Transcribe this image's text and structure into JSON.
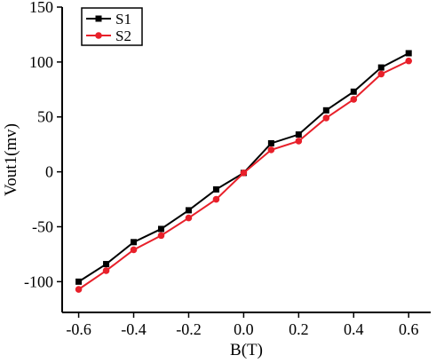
{
  "chart_data": {
    "type": "line",
    "xlabel": "B(T)",
    "ylabel": "Vout1(mv)",
    "xlim": [
      -0.66,
      0.68
    ],
    "ylim": [
      -128,
      150
    ],
    "xticks": [
      "-0.6",
      "-0.4",
      "-0.2",
      "0.0",
      "0.2",
      "0.4",
      "0.6"
    ],
    "yticks": [
      "-100",
      "-50",
      "0",
      "50",
      "100",
      "150"
    ],
    "x": [
      -0.6,
      -0.5,
      -0.4,
      -0.3,
      -0.2,
      -0.1,
      0.0,
      0.1,
      0.2,
      0.3,
      0.4,
      0.5,
      0.6
    ],
    "series": [
      {
        "name": "S1",
        "color": "#000000",
        "marker": "square",
        "values": [
          -100,
          -84,
          -64,
          -52,
          -35,
          -16,
          -1,
          26,
          34,
          56,
          73,
          95,
          108
        ]
      },
      {
        "name": "S2",
        "color": "#e8202a",
        "marker": "circle",
        "values": [
          -107,
          -90,
          -71,
          -58,
          -42,
          -25,
          -1,
          20,
          28,
          49,
          66,
          89,
          101
        ]
      }
    ],
    "legend": "top-left",
    "grid": false
  }
}
